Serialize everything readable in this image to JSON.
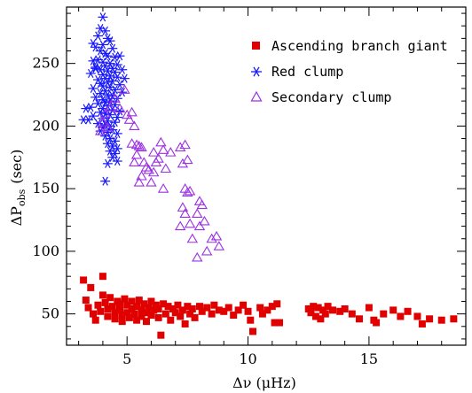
{
  "chart_data": {
    "type": "scatter",
    "xlabel": "Δν (μHz)",
    "ylabel_main": "ΔP",
    "ylabel_sub": "obs",
    "ylabel_unit": "(sec)",
    "xlim": [
      2.5,
      19
    ],
    "ylim": [
      25,
      295
    ],
    "x_ticks": [
      5,
      10,
      15
    ],
    "y_ticks": [
      50,
      100,
      150,
      200,
      250
    ],
    "x_minor_step": 1,
    "y_minor_step": 10,
    "grid": false,
    "legend_position": "top-right",
    "colors": {
      "red": "#e00000",
      "blue": "#1818ff",
      "purple": "#9a30e0"
    },
    "series": [
      {
        "name": "Ascending branch giant",
        "marker": "square",
        "color": "#e00000",
        "points": [
          [
            3.2,
            77
          ],
          [
            3.3,
            61
          ],
          [
            3.5,
            71
          ],
          [
            3.4,
            55
          ],
          [
            3.6,
            50
          ],
          [
            3.7,
            45
          ],
          [
            3.8,
            57
          ],
          [
            3.9,
            52
          ],
          [
            4.0,
            80
          ],
          [
            4.0,
            65
          ],
          [
            4.1,
            59
          ],
          [
            4.2,
            54
          ],
          [
            4.2,
            48
          ],
          [
            4.3,
            63
          ],
          [
            4.4,
            56
          ],
          [
            4.5,
            51
          ],
          [
            4.5,
            46
          ],
          [
            4.6,
            60
          ],
          [
            4.7,
            58
          ],
          [
            4.7,
            53
          ],
          [
            4.8,
            49
          ],
          [
            4.8,
            44
          ],
          [
            4.9,
            62
          ],
          [
            5.0,
            57
          ],
          [
            5.0,
            51
          ],
          [
            5.1,
            47
          ],
          [
            5.2,
            60
          ],
          [
            5.2,
            54
          ],
          [
            5.3,
            50
          ],
          [
            5.4,
            56
          ],
          [
            5.4,
            45
          ],
          [
            5.5,
            61
          ],
          [
            5.6,
            53
          ],
          [
            5.6,
            48
          ],
          [
            5.7,
            58
          ],
          [
            5.8,
            51
          ],
          [
            5.8,
            44
          ],
          [
            5.9,
            55
          ],
          [
            6.0,
            49
          ],
          [
            6.0,
            60
          ],
          [
            6.1,
            53
          ],
          [
            6.2,
            57
          ],
          [
            6.3,
            47
          ],
          [
            6.3,
            54
          ],
          [
            6.4,
            33
          ],
          [
            6.5,
            58
          ],
          [
            6.6,
            50
          ],
          [
            6.7,
            56
          ],
          [
            6.8,
            45
          ],
          [
            6.9,
            54
          ],
          [
            7.0,
            51
          ],
          [
            7.1,
            57
          ],
          [
            7.2,
            48
          ],
          [
            7.3,
            53
          ],
          [
            7.4,
            42
          ],
          [
            7.5,
            56
          ],
          [
            7.6,
            50
          ],
          [
            7.7,
            54
          ],
          [
            7.8,
            47
          ],
          [
            8.0,
            56
          ],
          [
            8.1,
            52
          ],
          [
            8.3,
            55
          ],
          [
            8.5,
            50
          ],
          [
            8.6,
            57
          ],
          [
            8.8,
            53
          ],
          [
            9.0,
            52
          ],
          [
            9.2,
            55
          ],
          [
            9.4,
            49
          ],
          [
            9.6,
            53
          ],
          [
            9.8,
            57
          ],
          [
            10.0,
            52
          ],
          [
            10.1,
            45
          ],
          [
            10.2,
            36
          ],
          [
            10.5,
            55
          ],
          [
            10.6,
            50
          ],
          [
            10.8,
            53
          ],
          [
            11.0,
            56
          ],
          [
            11.1,
            43
          ],
          [
            11.2,
            58
          ],
          [
            11.3,
            43
          ],
          [
            12.5,
            54
          ],
          [
            12.6,
            51
          ],
          [
            12.7,
            56
          ],
          [
            12.8,
            48
          ],
          [
            12.9,
            55
          ],
          [
            13.0,
            46
          ],
          [
            13.1,
            53
          ],
          [
            13.2,
            50
          ],
          [
            13.3,
            56
          ],
          [
            13.5,
            53
          ],
          [
            13.8,
            52
          ],
          [
            14.0,
            54
          ],
          [
            14.3,
            50
          ],
          [
            14.6,
            46
          ],
          [
            15.0,
            55
          ],
          [
            15.2,
            45
          ],
          [
            15.3,
            43
          ],
          [
            15.6,
            50
          ],
          [
            16.0,
            53
          ],
          [
            16.3,
            48
          ],
          [
            16.6,
            52
          ],
          [
            17.0,
            48
          ],
          [
            17.2,
            42
          ],
          [
            17.5,
            46
          ],
          [
            18.0,
            45
          ],
          [
            18.5,
            46
          ]
        ]
      },
      {
        "name": "Red clump",
        "marker": "asterisk",
        "color": "#1818ff",
        "points": [
          [
            4.0,
            287
          ],
          [
            3.9,
            278
          ],
          [
            4.1,
            276
          ],
          [
            3.8,
            272
          ],
          [
            4.2,
            270
          ],
          [
            4.3,
            268
          ],
          [
            4.0,
            265
          ],
          [
            3.7,
            263
          ],
          [
            4.4,
            262
          ],
          [
            3.9,
            260
          ],
          [
            4.1,
            258
          ],
          [
            4.2,
            256
          ],
          [
            4.5,
            255
          ],
          [
            3.8,
            253
          ],
          [
            3.6,
            252
          ],
          [
            4.0,
            251
          ],
          [
            4.3,
            250
          ],
          [
            4.6,
            249
          ],
          [
            4.1,
            248
          ],
          [
            3.7,
            247
          ],
          [
            4.4,
            246
          ],
          [
            3.9,
            245
          ],
          [
            4.2,
            244
          ],
          [
            4.5,
            243
          ],
          [
            3.5,
            242
          ],
          [
            4.0,
            241
          ],
          [
            4.3,
            240
          ],
          [
            4.6,
            239
          ],
          [
            4.1,
            238
          ],
          [
            3.8,
            237
          ],
          [
            4.4,
            236
          ],
          [
            4.2,
            235
          ],
          [
            3.9,
            234
          ],
          [
            4.7,
            233
          ],
          [
            4.0,
            232
          ],
          [
            4.3,
            231
          ],
          [
            3.6,
            230
          ],
          [
            4.5,
            229
          ],
          [
            4.1,
            228
          ],
          [
            4.8,
            227
          ],
          [
            3.9,
            226
          ],
          [
            4.2,
            225
          ],
          [
            4.4,
            224
          ],
          [
            3.7,
            223
          ],
          [
            4.6,
            222
          ],
          [
            4.0,
            221
          ],
          [
            4.3,
            220
          ],
          [
            4.1,
            219
          ],
          [
            3.8,
            218
          ],
          [
            4.5,
            217
          ],
          [
            4.2,
            216
          ],
          [
            3.5,
            215
          ],
          [
            4.0,
            214
          ],
          [
            4.4,
            213
          ],
          [
            4.7,
            212
          ],
          [
            3.9,
            211
          ],
          [
            4.1,
            210
          ],
          [
            4.3,
            209
          ],
          [
            3.6,
            208
          ],
          [
            4.6,
            207
          ],
          [
            4.0,
            206
          ],
          [
            3.4,
            205
          ],
          [
            4.2,
            204
          ],
          [
            4.5,
            203
          ],
          [
            3.8,
            202
          ],
          [
            4.1,
            201
          ],
          [
            4.3,
            200
          ],
          [
            4.0,
            199
          ],
          [
            4.4,
            197
          ],
          [
            3.9,
            196
          ],
          [
            4.2,
            195
          ],
          [
            4.6,
            194
          ],
          [
            4.1,
            192
          ],
          [
            4.3,
            190
          ],
          [
            4.5,
            188
          ],
          [
            4.2,
            186
          ],
          [
            4.4,
            184
          ],
          [
            4.6,
            182
          ],
          [
            4.3,
            180
          ],
          [
            4.5,
            178
          ],
          [
            4.4,
            175
          ],
          [
            4.2,
            170
          ],
          [
            4.6,
            172
          ],
          [
            4.1,
            156
          ],
          [
            3.3,
            214
          ],
          [
            3.2,
            205
          ],
          [
            3.7,
            246
          ],
          [
            4.8,
            245
          ],
          [
            4.9,
            238
          ],
          [
            4.7,
            256
          ],
          [
            3.6,
            266
          ]
        ]
      },
      {
        "name": "Secondary clump",
        "marker": "triangle",
        "color": "#9a30e0",
        "points": [
          [
            3.9,
            196
          ],
          [
            4.0,
            203
          ],
          [
            4.2,
            199
          ],
          [
            4.1,
            210
          ],
          [
            4.3,
            215
          ],
          [
            4.5,
            222
          ],
          [
            4.7,
            214
          ],
          [
            4.9,
            229
          ],
          [
            5.0,
            209
          ],
          [
            5.1,
            205
          ],
          [
            5.2,
            211
          ],
          [
            5.3,
            200
          ],
          [
            5.4,
            185
          ],
          [
            5.5,
            184
          ],
          [
            5.4,
            177
          ],
          [
            5.6,
            183
          ],
          [
            5.7,
            171
          ],
          [
            5.8,
            167
          ],
          [
            5.9,
            165
          ],
          [
            6.1,
            179
          ],
          [
            6.2,
            171
          ],
          [
            6.3,
            174
          ],
          [
            6.4,
            187
          ],
          [
            6.5,
            181
          ],
          [
            6.1,
            163
          ],
          [
            6.6,
            166
          ],
          [
            6.0,
            155
          ],
          [
            5.3,
            171
          ],
          [
            5.6,
            160
          ],
          [
            5.5,
            155
          ],
          [
            7.2,
            183
          ],
          [
            7.4,
            185
          ],
          [
            7.3,
            170
          ],
          [
            7.5,
            173
          ],
          [
            7.4,
            150
          ],
          [
            7.5,
            147
          ],
          [
            7.3,
            135
          ],
          [
            7.4,
            130
          ],
          [
            7.6,
            148
          ],
          [
            7.2,
            120
          ],
          [
            7.6,
            122
          ],
          [
            7.7,
            110
          ],
          [
            7.9,
            130
          ],
          [
            8.0,
            140
          ],
          [
            8.1,
            137
          ],
          [
            8.0,
            120
          ],
          [
            8.2,
            124
          ],
          [
            8.5,
            110
          ],
          [
            8.7,
            112
          ],
          [
            8.8,
            104
          ],
          [
            7.9,
            95
          ],
          [
            8.3,
            100
          ],
          [
            6.8,
            179
          ],
          [
            6.5,
            150
          ],
          [
            5.2,
            186
          ]
        ]
      }
    ]
  }
}
